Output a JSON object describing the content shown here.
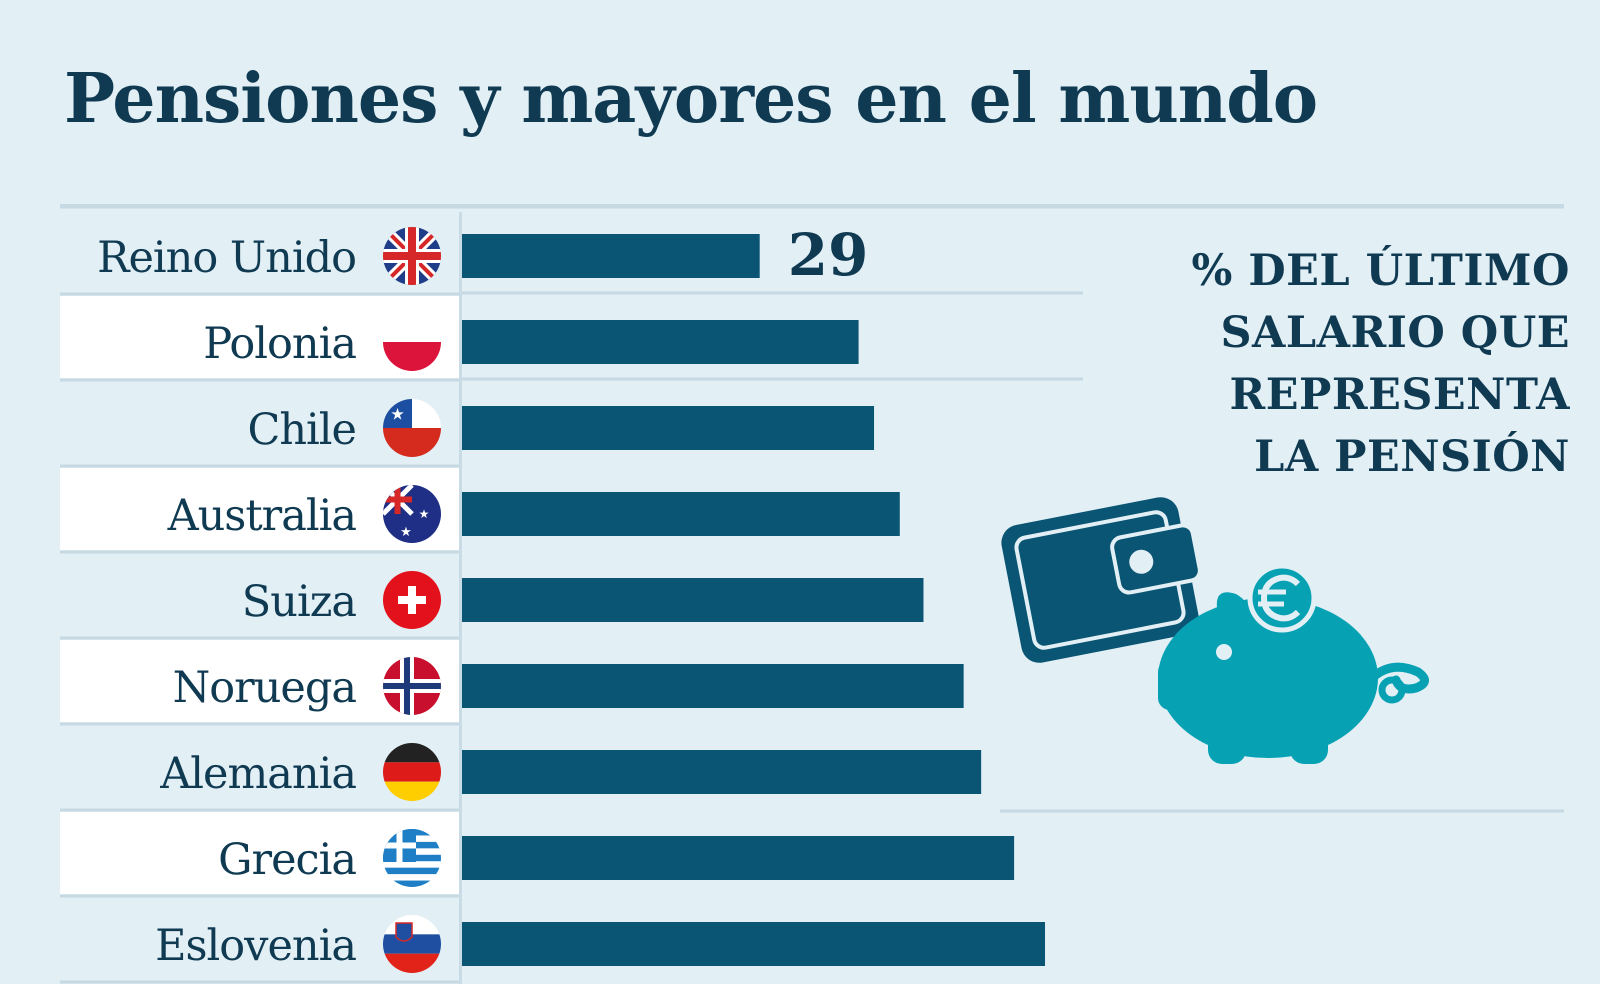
{
  "title": "Pensiones y mayores en el mundo",
  "legend_lines": [
    "% DEL ÚLTIMO",
    "SALARIO QUE",
    "REPRESENTA",
    "LA PENSIÓN"
  ],
  "colors": {
    "background": "#e2eff5",
    "bar": "#0a5573",
    "text": "#0f3a52",
    "row_highlight": "#ffffff",
    "piggy": "#07a1b4"
  },
  "icons": [
    "wallet-icon",
    "piggy-bank-icon",
    "euro-coin-icon"
  ],
  "chart_data": {
    "type": "bar",
    "orientation": "horizontal",
    "categories": [
      "Reino Unido",
      "Polonia",
      "Chile",
      "Australia",
      "Suiza",
      "Noruega",
      "Alemania",
      "Grecia",
      "Eslovenia"
    ],
    "values": [
      29,
      38.6,
      40.1,
      42.6,
      44.9,
      48.8,
      50.5,
      53.7,
      56.7
    ],
    "data_labels": [
      "29",
      "",
      "",
      "",
      "",
      "",
      "",
      "",
      ""
    ],
    "flags": [
      "uk-flag-icon",
      "poland-flag-icon",
      "chile-flag-icon",
      "australia-flag-icon",
      "switzerland-flag-icon",
      "norway-flag-icon",
      "germany-flag-icon",
      "greece-flag-icon",
      "slovenia-flag-icon"
    ],
    "xlim": [
      0,
      100
    ],
    "grid": false,
    "legend": "top-right"
  }
}
